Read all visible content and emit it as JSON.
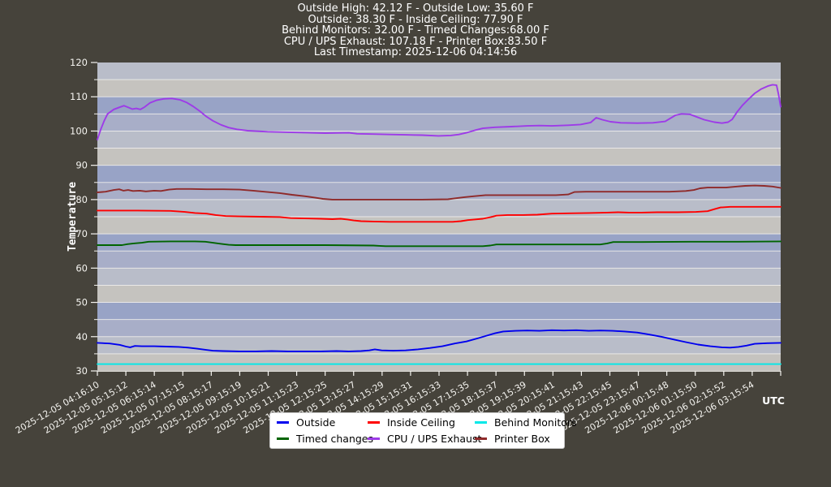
{
  "header": {
    "lines": [
      "Outside High: 42.12 F - Outside Low: 35.60 F",
      "Outside: 38.30 F - Inside Ceiling: 77.90 F",
      "Behind Monitors: 32.00 F - Timed Changes:68.00 F",
      "CPU / UPS Exhaust: 107.18 F - Printer Box:83.50 F",
      "Last Timestamp: 2025-12-06 04:14:56"
    ]
  },
  "colors": {
    "background": "#46433b",
    "gridline": "#f2f1ee",
    "axis_text": "#f5f4f0",
    "legend_bg": "#ffffff",
    "legend_text": "#000000"
  },
  "chart_data": {
    "type": "line",
    "ylabel": "Temperature",
    "x_unit_label": "UTC",
    "ylim": [
      30,
      120
    ],
    "y_major_ticks": [
      30,
      40,
      50,
      60,
      70,
      80,
      90,
      100,
      110,
      120
    ],
    "band_step": 5,
    "band_colors": [
      "#b9bdc9",
      "#c5c3bf",
      "#98a3c6",
      "#a8aec8"
    ],
    "x_tick_labels": [
      "2025-12-05 04:16:10",
      "2025-12-05 05:15:12",
      "2025-12-05 06:15:14",
      "2025-12-05 07:15:15",
      "2025-12-05 08:15:17",
      "2025-12-05 09:15:19",
      "2025-12-05 10:15:21",
      "2025-12-05 11:15:23",
      "2025-12-05 12:15:25",
      "2025-12-05 13:15:27",
      "2025-12-05 14:15:29",
      "2025-12-05 15:15:31",
      "2025-12-05 16:15:33",
      "2025-12-05 17:15:35",
      "2025-12-05 18:15:37",
      "2025-12-05 19:15:39",
      "2025-12-05 20:15:41",
      "2025-12-05 21:15:43",
      "2025-12-05 22:15:45",
      "2025-12-05 23:15:47",
      "2025-12-06 00:15:48",
      "2025-12-06 01:15:50",
      "2025-12-06 02:15:52",
      "2025-12-06 03:15:54"
    ],
    "series": [
      {
        "name": "Outside",
        "color": "#0000ee",
        "points": [
          [
            0,
            38.2
          ],
          [
            0.018,
            38.0
          ],
          [
            0.033,
            37.6
          ],
          [
            0.042,
            37.1
          ],
          [
            0.048,
            36.9
          ],
          [
            0.055,
            37.3
          ],
          [
            0.065,
            37.2
          ],
          [
            0.083,
            37.2
          ],
          [
            0.101,
            37.1
          ],
          [
            0.119,
            37.0
          ],
          [
            0.133,
            36.8
          ],
          [
            0.146,
            36.5
          ],
          [
            0.157,
            36.2
          ],
          [
            0.169,
            35.9
          ],
          [
            0.184,
            35.8
          ],
          [
            0.208,
            35.7
          ],
          [
            0.232,
            35.7
          ],
          [
            0.255,
            35.8
          ],
          [
            0.279,
            35.7
          ],
          [
            0.303,
            35.7
          ],
          [
            0.327,
            35.7
          ],
          [
            0.35,
            35.8
          ],
          [
            0.368,
            35.7
          ],
          [
            0.386,
            35.8
          ],
          [
            0.398,
            36.0
          ],
          [
            0.406,
            36.3
          ],
          [
            0.416,
            36.0
          ],
          [
            0.433,
            35.9
          ],
          [
            0.451,
            36.0
          ],
          [
            0.469,
            36.3
          ],
          [
            0.487,
            36.7
          ],
          [
            0.505,
            37.2
          ],
          [
            0.523,
            38.0
          ],
          [
            0.54,
            38.6
          ],
          [
            0.558,
            39.6
          ],
          [
            0.57,
            40.3
          ],
          [
            0.582,
            41.0
          ],
          [
            0.594,
            41.5
          ],
          [
            0.612,
            41.7
          ],
          [
            0.629,
            41.8
          ],
          [
            0.647,
            41.7
          ],
          [
            0.665,
            41.9
          ],
          [
            0.683,
            41.8
          ],
          [
            0.701,
            41.9
          ],
          [
            0.719,
            41.7
          ],
          [
            0.736,
            41.8
          ],
          [
            0.754,
            41.7
          ],
          [
            0.772,
            41.5
          ],
          [
            0.79,
            41.2
          ],
          [
            0.808,
            40.6
          ],
          [
            0.825,
            40.0
          ],
          [
            0.843,
            39.2
          ],
          [
            0.861,
            38.4
          ],
          [
            0.879,
            37.7
          ],
          [
            0.897,
            37.2
          ],
          [
            0.914,
            36.9
          ],
          [
            0.926,
            36.8
          ],
          [
            0.938,
            37.0
          ],
          [
            0.95,
            37.4
          ],
          [
            0.962,
            37.9
          ],
          [
            0.98,
            38.1
          ],
          [
            1,
            38.2
          ]
        ]
      },
      {
        "name": "Inside Ceiling",
        "color": "#ff0000",
        "points": [
          [
            0,
            76.8
          ],
          [
            0.059,
            76.8
          ],
          [
            0.107,
            76.7
          ],
          [
            0.128,
            76.4
          ],
          [
            0.143,
            76.1
          ],
          [
            0.16,
            75.9
          ],
          [
            0.173,
            75.5
          ],
          [
            0.188,
            75.2
          ],
          [
            0.208,
            75.1
          ],
          [
            0.238,
            75.0
          ],
          [
            0.267,
            74.9
          ],
          [
            0.283,
            74.6
          ],
          [
            0.303,
            74.5
          ],
          [
            0.327,
            74.4
          ],
          [
            0.344,
            74.3
          ],
          [
            0.356,
            74.4
          ],
          [
            0.366,
            74.2
          ],
          [
            0.375,
            73.9
          ],
          [
            0.386,
            73.7
          ],
          [
            0.404,
            73.6
          ],
          [
            0.428,
            73.5
          ],
          [
            0.463,
            73.5
          ],
          [
            0.499,
            73.5
          ],
          [
            0.52,
            73.5
          ],
          [
            0.532,
            73.7
          ],
          [
            0.542,
            74.0
          ],
          [
            0.552,
            74.2
          ],
          [
            0.564,
            74.4
          ],
          [
            0.576,
            74.9
          ],
          [
            0.584,
            75.3
          ],
          [
            0.6,
            75.5
          ],
          [
            0.623,
            75.5
          ],
          [
            0.644,
            75.6
          ],
          [
            0.665,
            75.9
          ],
          [
            0.689,
            76.0
          ],
          [
            0.719,
            76.1
          ],
          [
            0.746,
            76.2
          ],
          [
            0.762,
            76.3
          ],
          [
            0.778,
            76.2
          ],
          [
            0.796,
            76.2
          ],
          [
            0.819,
            76.3
          ],
          [
            0.849,
            76.3
          ],
          [
            0.876,
            76.4
          ],
          [
            0.893,
            76.6
          ],
          [
            0.903,
            77.2
          ],
          [
            0.912,
            77.7
          ],
          [
            0.926,
            77.9
          ],
          [
            0.956,
            77.9
          ],
          [
            0.986,
            77.9
          ],
          [
            1,
            77.9
          ]
        ]
      },
      {
        "name": "Behind Monitors",
        "color": "#00e8e8",
        "points": [
          [
            0,
            32.0
          ],
          [
            0.5,
            32.0
          ],
          [
            1,
            32.0
          ]
        ]
      },
      {
        "name": "Timed changes",
        "color": "#006400",
        "points": [
          [
            0,
            66.7
          ],
          [
            0.036,
            66.7
          ],
          [
            0.044,
            67.0
          ],
          [
            0.053,
            67.2
          ],
          [
            0.065,
            67.4
          ],
          [
            0.075,
            67.7
          ],
          [
            0.107,
            67.8
          ],
          [
            0.143,
            67.8
          ],
          [
            0.158,
            67.7
          ],
          [
            0.169,
            67.4
          ],
          [
            0.181,
            67.1
          ],
          [
            0.192,
            66.8
          ],
          [
            0.202,
            66.7
          ],
          [
            0.261,
            66.7
          ],
          [
            0.333,
            66.7
          ],
          [
            0.404,
            66.6
          ],
          [
            0.413,
            66.5
          ],
          [
            0.422,
            66.4
          ],
          [
            0.487,
            66.4
          ],
          [
            0.564,
            66.4
          ],
          [
            0.575,
            66.6
          ],
          [
            0.584,
            66.9
          ],
          [
            0.618,
            66.9
          ],
          [
            0.677,
            66.9
          ],
          [
            0.736,
            66.9
          ],
          [
            0.746,
            67.2
          ],
          [
            0.755,
            67.6
          ],
          [
            0.796,
            67.6
          ],
          [
            0.867,
            67.7
          ],
          [
            0.938,
            67.7
          ],
          [
            1,
            67.8
          ]
        ]
      },
      {
        "name": "CPU / UPS Exhaust",
        "color": "#9d3be8",
        "points": [
          [
            0,
            97.5
          ],
          [
            0.005,
            100.5
          ],
          [
            0.01,
            103.0
          ],
          [
            0.015,
            105.0
          ],
          [
            0.024,
            106.3
          ],
          [
            0.032,
            106.9
          ],
          [
            0.039,
            107.4
          ],
          [
            0.045,
            106.9
          ],
          [
            0.051,
            106.4
          ],
          [
            0.057,
            106.6
          ],
          [
            0.063,
            106.3
          ],
          [
            0.069,
            107.0
          ],
          [
            0.077,
            108.2
          ],
          [
            0.087,
            109.0
          ],
          [
            0.097,
            109.4
          ],
          [
            0.109,
            109.5
          ],
          [
            0.121,
            109.1
          ],
          [
            0.131,
            108.3
          ],
          [
            0.14,
            107.2
          ],
          [
            0.15,
            105.8
          ],
          [
            0.159,
            104.3
          ],
          [
            0.169,
            103.0
          ],
          [
            0.181,
            101.8
          ],
          [
            0.192,
            101.0
          ],
          [
            0.204,
            100.5
          ],
          [
            0.22,
            100.1
          ],
          [
            0.249,
            99.8
          ],
          [
            0.285,
            99.6
          ],
          [
            0.333,
            99.4
          ],
          [
            0.368,
            99.5
          ],
          [
            0.38,
            99.2
          ],
          [
            0.404,
            99.1
          ],
          [
            0.428,
            99.0
          ],
          [
            0.451,
            98.9
          ],
          [
            0.475,
            98.8
          ],
          [
            0.499,
            98.6
          ],
          [
            0.517,
            98.7
          ],
          [
            0.529,
            99.0
          ],
          [
            0.54,
            99.5
          ],
          [
            0.552,
            100.2
          ],
          [
            0.564,
            100.8
          ],
          [
            0.582,
            101.1
          ],
          [
            0.606,
            101.3
          ],
          [
            0.629,
            101.5
          ],
          [
            0.647,
            101.6
          ],
          [
            0.665,
            101.5
          ],
          [
            0.689,
            101.7
          ],
          [
            0.707,
            101.9
          ],
          [
            0.722,
            102.5
          ],
          [
            0.73,
            103.9
          ],
          [
            0.739,
            103.3
          ],
          [
            0.751,
            102.7
          ],
          [
            0.766,
            102.4
          ],
          [
            0.79,
            102.3
          ],
          [
            0.813,
            102.4
          ],
          [
            0.831,
            102.8
          ],
          [
            0.846,
            104.6
          ],
          [
            0.855,
            105.0
          ],
          [
            0.867,
            104.9
          ],
          [
            0.876,
            104.2
          ],
          [
            0.888,
            103.3
          ],
          [
            0.903,
            102.6
          ],
          [
            0.914,
            102.3
          ],
          [
            0.923,
            102.6
          ],
          [
            0.929,
            103.4
          ],
          [
            0.936,
            105.5
          ],
          [
            0.944,
            107.5
          ],
          [
            0.953,
            109.3
          ],
          [
            0.962,
            111.0
          ],
          [
            0.971,
            112.2
          ],
          [
            0.981,
            113.1
          ],
          [
            0.988,
            113.5
          ],
          [
            0.994,
            113.4
          ],
          [
            0.997,
            110.5
          ],
          [
            1,
            107.1
          ]
        ]
      },
      {
        "name": "Printer Box",
        "color": "#8f2a2a",
        "points": [
          [
            0,
            82.1
          ],
          [
            0.012,
            82.3
          ],
          [
            0.024,
            82.8
          ],
          [
            0.032,
            83.0
          ],
          [
            0.038,
            82.6
          ],
          [
            0.045,
            82.8
          ],
          [
            0.052,
            82.5
          ],
          [
            0.062,
            82.6
          ],
          [
            0.071,
            82.4
          ],
          [
            0.083,
            82.6
          ],
          [
            0.093,
            82.5
          ],
          [
            0.105,
            82.9
          ],
          [
            0.116,
            83.1
          ],
          [
            0.137,
            83.1
          ],
          [
            0.16,
            83.0
          ],
          [
            0.184,
            83.0
          ],
          [
            0.208,
            82.9
          ],
          [
            0.228,
            82.6
          ],
          [
            0.249,
            82.2
          ],
          [
            0.267,
            81.9
          ],
          [
            0.285,
            81.4
          ],
          [
            0.303,
            81.0
          ],
          [
            0.318,
            80.6
          ],
          [
            0.33,
            80.2
          ],
          [
            0.344,
            80.0
          ],
          [
            0.38,
            80.0
          ],
          [
            0.428,
            80.0
          ],
          [
            0.475,
            80.0
          ],
          [
            0.513,
            80.1
          ],
          [
            0.525,
            80.4
          ],
          [
            0.537,
            80.7
          ],
          [
            0.552,
            81.0
          ],
          [
            0.568,
            81.3
          ],
          [
            0.58,
            81.3
          ],
          [
            0.606,
            81.3
          ],
          [
            0.641,
            81.3
          ],
          [
            0.671,
            81.3
          ],
          [
            0.689,
            81.5
          ],
          [
            0.698,
            82.2
          ],
          [
            0.715,
            82.3
          ],
          [
            0.748,
            82.3
          ],
          [
            0.796,
            82.3
          ],
          [
            0.837,
            82.3
          ],
          [
            0.861,
            82.5
          ],
          [
            0.873,
            82.8
          ],
          [
            0.882,
            83.3
          ],
          [
            0.893,
            83.5
          ],
          [
            0.92,
            83.5
          ],
          [
            0.936,
            83.8
          ],
          [
            0.948,
            84.0
          ],
          [
            0.962,
            84.1
          ],
          [
            0.976,
            84.0
          ],
          [
            0.988,
            83.8
          ],
          [
            1,
            83.4
          ]
        ]
      }
    ]
  }
}
